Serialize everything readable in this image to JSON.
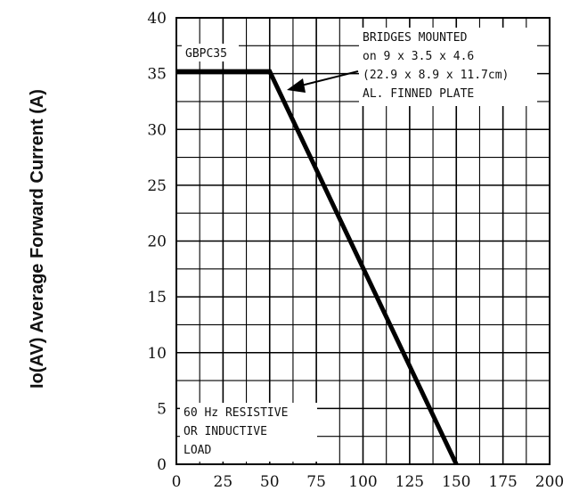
{
  "chart_data": {
    "type": "line",
    "ylabel": "Io(AV) Average Forward Current (A)",
    "xlabel": "",
    "xlim": [
      0,
      200
    ],
    "ylim": [
      0,
      40
    ],
    "x_ticks": [
      0,
      25,
      50,
      75,
      100,
      125,
      150,
      175,
      200
    ],
    "y_ticks": [
      0,
      5,
      10,
      15,
      20,
      25,
      30,
      35,
      40
    ],
    "x_tick_labels": [
      "0",
      "25",
      "50",
      "75",
      "100",
      "125",
      "150",
      "175",
      "200"
    ],
    "y_tick_labels": [
      "0",
      "5",
      "10",
      "15",
      "20",
      "25",
      "30",
      "35",
      "40"
    ],
    "grid": true,
    "series": [
      {
        "name": "GBPC35",
        "x": [
          0,
          50,
          150
        ],
        "y": [
          35.2,
          35.2,
          0
        ]
      }
    ],
    "annotations": {
      "series_label": "GBPC35",
      "mounting": [
        "BRIDGES MOUNTED",
        "on 9 x 3.5 x 4.6",
        "(22.9 x 8.9 x 11.7cm)",
        "AL. FINNED PLATE"
      ],
      "load": [
        "60 Hz RESISTIVE",
        "OR INDUCTIVE",
        "LOAD"
      ]
    }
  }
}
